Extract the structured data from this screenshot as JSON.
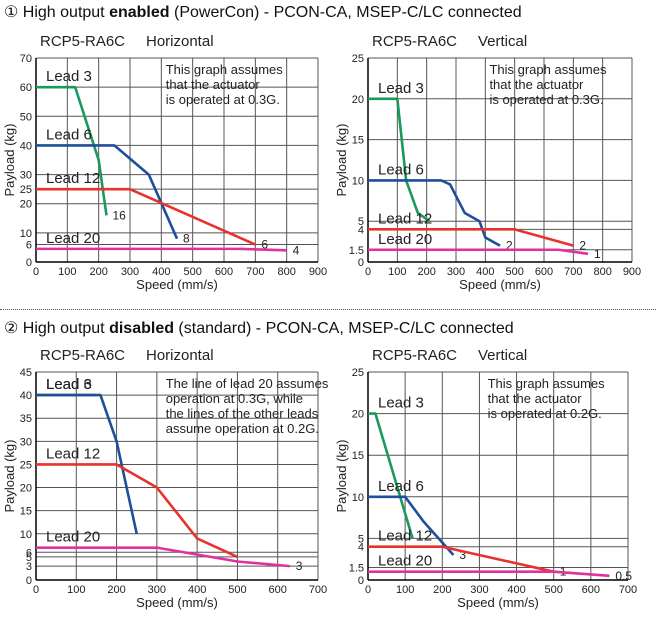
{
  "sections": [
    {
      "number": "①",
      "prefix": " High output ",
      "emphasis": "enabled",
      "suffix": " (PowerCon) - PCON-CA, MSEP-C/LC connected"
    },
    {
      "number": "②",
      "prefix": " High output ",
      "emphasis": "disabled",
      "suffix": " (standard) - PCON-CA, MSEP-C/LC connected"
    }
  ],
  "chart_data": [
    {
      "type": "line",
      "title": "RCP5-RA6C",
      "subtitle": "Horizontal",
      "xlabel": "Speed (mm/s)",
      "ylabel": "Payload (kg)",
      "xlim": [
        0,
        900
      ],
      "xticks": [
        0,
        100,
        200,
        300,
        400,
        500,
        600,
        700,
        800,
        900
      ],
      "ylim": [
        0,
        70
      ],
      "yticks": [
        0,
        6,
        10,
        20,
        25,
        30,
        40,
        50,
        60,
        70
      ],
      "grid": true,
      "annotation": [
        "This graph assumes",
        "that the actuator",
        "is operated at 0.3G."
      ],
      "series": [
        {
          "name": "Lead 3",
          "color": "#1a9a5a",
          "x": [
            0,
            125,
            200,
            225
          ],
          "values": [
            60,
            60,
            35,
            16
          ],
          "end_label": true
        },
        {
          "name": "Lead 6",
          "color": "#1f4e9c",
          "x": [
            0,
            250,
            360,
            450
          ],
          "values": [
            40,
            40,
            30,
            8
          ],
          "end_label": true
        },
        {
          "name": "Lead 12",
          "color": "#e8322c",
          "x": [
            0,
            300,
            700
          ],
          "values": [
            25,
            25,
            6
          ],
          "end_label": true
        },
        {
          "name": "Lead 20",
          "color": "#e0319c",
          "x": [
            0,
            650,
            800
          ],
          "values": [
            4.5,
            4.5,
            4
          ],
          "end_label": true
        }
      ]
    },
    {
      "type": "line",
      "title": "RCP5-RA6C",
      "subtitle": "Vertical",
      "xlabel": "Speed (mm/s)",
      "ylabel": "Payload (kg)",
      "xlim": [
        0,
        900
      ],
      "xticks": [
        0,
        100,
        200,
        300,
        400,
        500,
        600,
        700,
        800,
        900
      ],
      "ylim": [
        0,
        25
      ],
      "yticks": [
        0,
        1.5,
        4,
        5,
        10,
        15,
        20,
        25
      ],
      "grid": true,
      "annotation": [
        "This graph assumes",
        "that the actuator",
        "is operated at 0.3G."
      ],
      "series": [
        {
          "name": "Lead 3",
          "color": "#1a9a5a",
          "x": [
            0,
            100,
            130,
            170,
            210
          ],
          "values": [
            20,
            20,
            10,
            6,
            5
          ],
          "end_label": false
        },
        {
          "name": "Lead 6",
          "color": "#1f4e9c",
          "x": [
            0,
            250,
            280,
            330,
            380,
            400,
            450
          ],
          "values": [
            10,
            10,
            9.5,
            6,
            5,
            3,
            2
          ],
          "end_label": true
        },
        {
          "name": "Lead 12",
          "color": "#e8322c",
          "x": [
            0,
            500,
            700
          ],
          "values": [
            4,
            4,
            2
          ],
          "end_label": true
        },
        {
          "name": "Lead 20",
          "color": "#e0319c",
          "x": [
            0,
            650,
            750
          ],
          "values": [
            1.5,
            1.5,
            1
          ],
          "end_label": true
        }
      ]
    },
    {
      "type": "line",
      "title": "RCP5-RA6C",
      "subtitle": "Horizontal",
      "xlabel": "Speed (mm/s)",
      "ylabel": "Payload (kg)",
      "xlim": [
        0,
        700
      ],
      "xticks": [
        0,
        100,
        200,
        300,
        400,
        500,
        600,
        700
      ],
      "ylim": [
        0,
        45
      ],
      "yticks": [
        0,
        3,
        5,
        6,
        10,
        15,
        20,
        25,
        30,
        35,
        40,
        45
      ],
      "grid": true,
      "annotation": [
        "The line of lead 20 assumes",
        "operation at 0.3G, while",
        "the lines of the other leads",
        "assume operation at 0.2G."
      ],
      "series": [
        {
          "name": "Lead 3",
          "color": "#1a9a5a",
          "x": [
            0,
            150
          ],
          "values": [
            40,
            40
          ],
          "end_label": false
        },
        {
          "name": "Lead 6",
          "color": "#1f4e9c",
          "x": [
            0,
            160,
            200,
            250
          ],
          "values": [
            40,
            40,
            30,
            10
          ],
          "end_label": false
        },
        {
          "name": "Lead 12",
          "color": "#e8322c",
          "x": [
            0,
            200,
            300,
            400,
            500
          ],
          "values": [
            25,
            25,
            20,
            9,
            5
          ],
          "end_label": false
        },
        {
          "name": "Lead 20",
          "color": "#e0319c",
          "x": [
            0,
            300,
            500,
            630
          ],
          "values": [
            7,
            7,
            4,
            3
          ],
          "end_label": true
        }
      ]
    },
    {
      "type": "line",
      "title": "RCP5-RA6C",
      "subtitle": "Vertical",
      "xlabel": "Speed (mm/s)",
      "ylabel": "Payload (kg)",
      "xlim": [
        0,
        700
      ],
      "xticks": [
        0,
        100,
        200,
        300,
        400,
        500,
        600,
        700
      ],
      "ylim": [
        0,
        25
      ],
      "yticks": [
        0,
        1.5,
        4,
        5,
        10,
        15,
        20,
        25
      ],
      "grid": true,
      "annotation": [
        "This graph assumes",
        "that the actuator",
        "is operated at 0.2G."
      ],
      "series": [
        {
          "name": "Lead 3",
          "color": "#1a9a5a",
          "x": [
            0,
            20,
            120
          ],
          "values": [
            20,
            20,
            5
          ],
          "end_label": false
        },
        {
          "name": "Lead 6",
          "color": "#1f4e9c",
          "x": [
            0,
            100,
            150,
            230
          ],
          "values": [
            10,
            10,
            7,
            3
          ],
          "end_label": true
        },
        {
          "name": "Lead 12",
          "color": "#e8322c",
          "x": [
            0,
            200,
            500
          ],
          "values": [
            4,
            4,
            1
          ],
          "end_label": true
        },
        {
          "name": "Lead 20",
          "color": "#e0319c",
          "x": [
            0,
            500,
            650
          ],
          "values": [
            1,
            1,
            0.5
          ],
          "end_label": true
        }
      ]
    }
  ]
}
